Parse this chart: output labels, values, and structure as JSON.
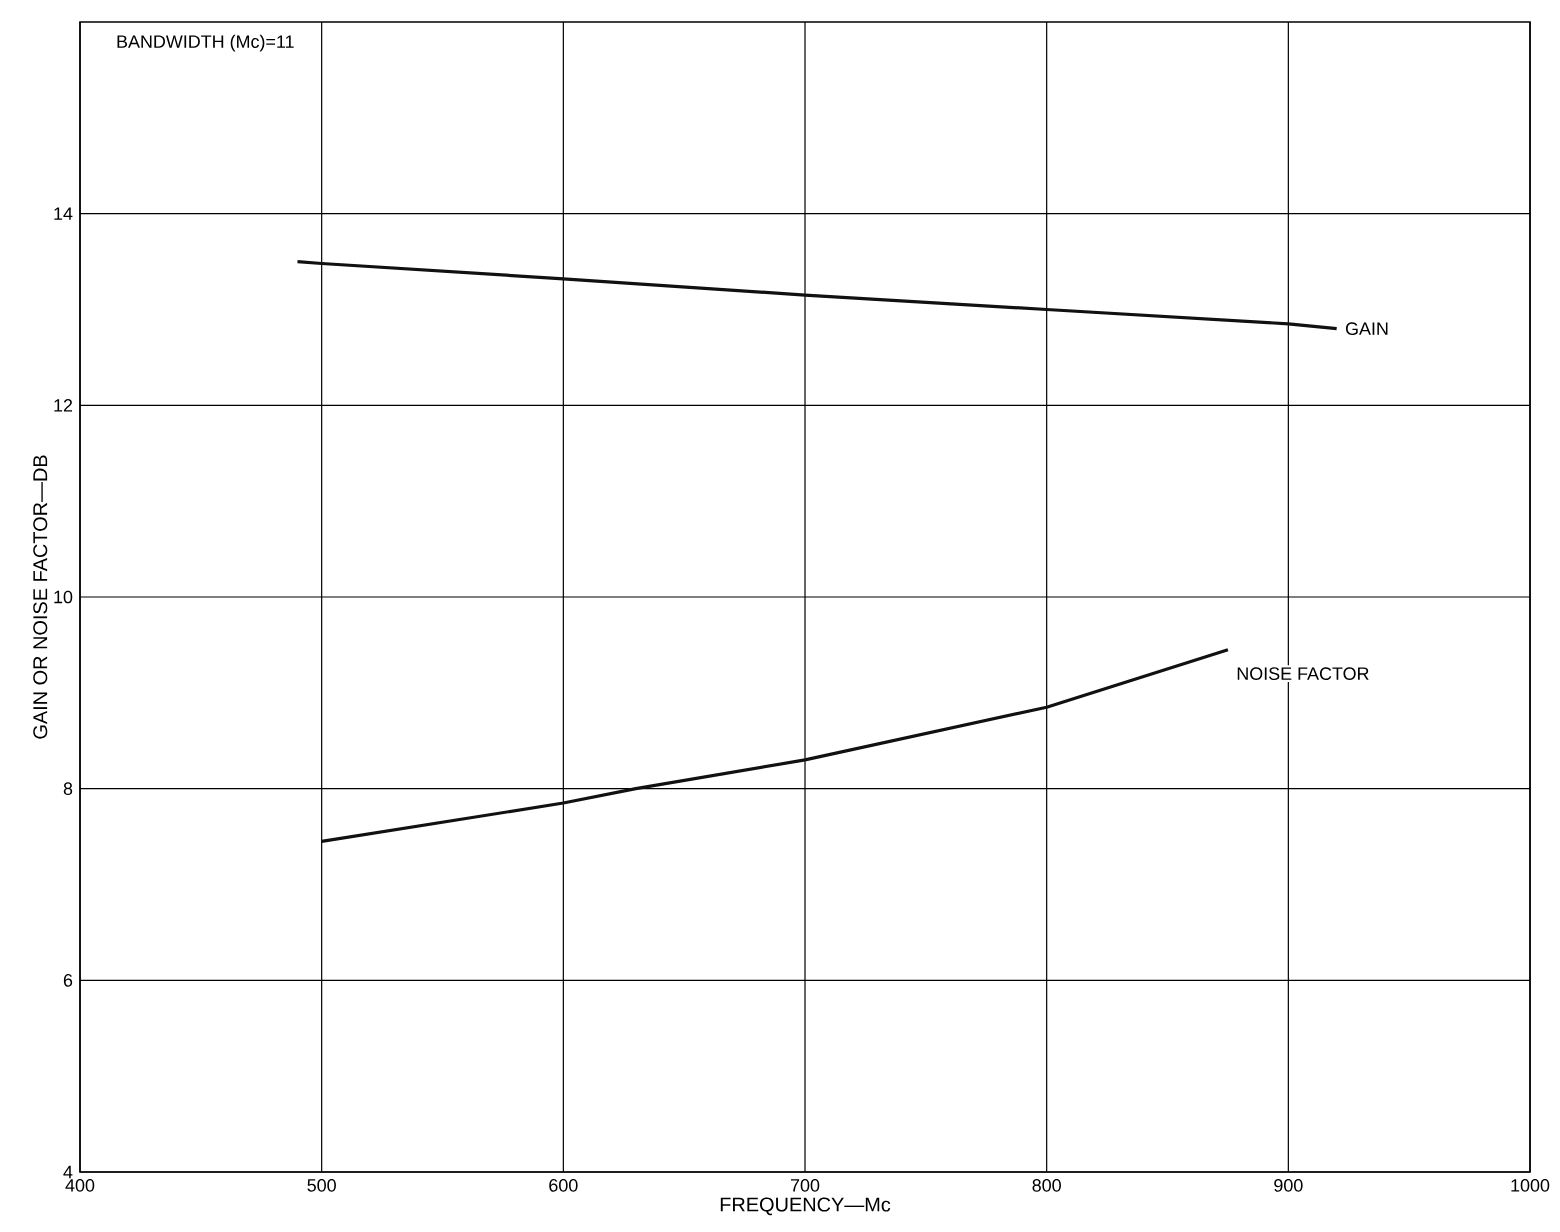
{
  "chart_data": {
    "type": "line",
    "xlabel": "FREQUENCY—Mc",
    "ylabel": "GAIN OR NOISE FACTOR—DB",
    "annotations": [
      "BANDWIDTH (Mc)=11"
    ],
    "xlim": [
      400,
      1000
    ],
    "ylim": [
      4,
      16
    ],
    "xticks": [
      400,
      500,
      600,
      700,
      800,
      900,
      1000
    ],
    "yticks": [
      4,
      6,
      8,
      10,
      12,
      14
    ],
    "grid": true,
    "legend": false,
    "marker": "none",
    "line_style": "solid",
    "series": [
      {
        "name": "GAIN",
        "color": "#111111",
        "x": [
          490,
          500,
          600,
          700,
          800,
          900,
          920
        ],
        "values": [
          13.5,
          13.48,
          13.32,
          13.15,
          13.0,
          12.85,
          12.8
        ]
      },
      {
        "name": "NOISE FACTOR",
        "color": "#111111",
        "x": [
          500,
          600,
          630,
          700,
          800,
          875
        ],
        "values": [
          7.45,
          7.85,
          8.0,
          8.3,
          8.85,
          9.45
        ]
      }
    ]
  }
}
